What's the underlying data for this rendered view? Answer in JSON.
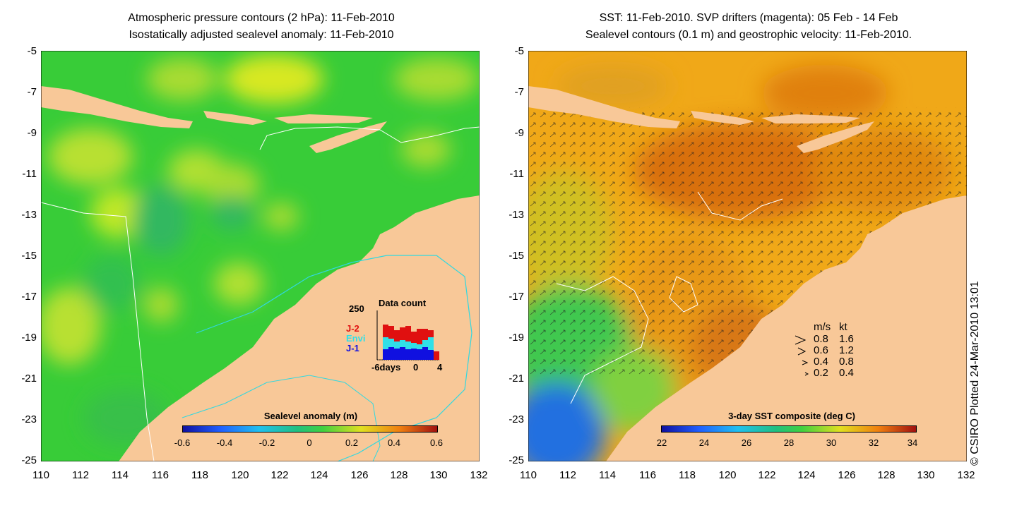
{
  "left_panel": {
    "title_line1": "Atmospheric pressure contours (2 hPa): 11-Feb-2010",
    "title_line2": "Isostatically adjusted sealevel anomaly: 11-Feb-2010",
    "y_ticks": [
      "-5",
      "-7",
      "-9",
      "-11",
      "-13",
      "-15",
      "-17",
      "-19",
      "-21",
      "-23",
      "-25"
    ],
    "x_ticks": [
      "110",
      "112",
      "114",
      "116",
      "118",
      "120",
      "122",
      "124",
      "126",
      "128",
      "130",
      "132"
    ],
    "colorbar": {
      "label": "Sealevel anomaly (m)",
      "ticks": [
        "-0.6",
        "-0.4",
        "-0.2",
        "0",
        "0.2",
        "0.4",
        "0.6"
      ]
    },
    "data_count": {
      "title": "Data count",
      "max_label": "250",
      "x_ticks": [
        "-6days",
        "0",
        "4"
      ],
      "legend": [
        {
          "label": "J-2",
          "color": "#e01010"
        },
        {
          "label": "Envi",
          "color": "#30e0e8"
        },
        {
          "label": "J-1",
          "color": "#1010e0"
        }
      ]
    }
  },
  "right_panel": {
    "title_line1": "SST: 11-Feb-2010. SVP drifters (magenta): 05 Feb - 14 Feb",
    "title_line2": "Sealevel contours (0.1 m) and geostrophic velocity: 11-Feb-2010.",
    "y_ticks": [
      "-5",
      "-7",
      "-9",
      "-11",
      "-13",
      "-15",
      "-17",
      "-19",
      "-21",
      "-23",
      "-25"
    ],
    "x_ticks": [
      "110",
      "112",
      "114",
      "116",
      "118",
      "120",
      "122",
      "124",
      "126",
      "128",
      "130",
      "132"
    ],
    "colorbar": {
      "label": "3-day SST composite (deg C)",
      "ticks": [
        "22",
        "24",
        "26",
        "28",
        "30",
        "32",
        "34"
      ]
    },
    "velocity_key": {
      "header_ms": "m/s",
      "header_kt": "kt",
      "rows": [
        {
          "ms": "0.8",
          "kt": "1.6"
        },
        {
          "ms": "0.6",
          "kt": "1.2"
        },
        {
          "ms": "0.4",
          "kt": "0.8"
        },
        {
          "ms": "0.2",
          "kt": "0.4"
        }
      ]
    }
  },
  "credit": "© CSIRO Plotted 24-Mar-2010 13:01",
  "colors": {
    "land": "#f8c898",
    "sla_background": "#40d040",
    "sst_background": "#f0a020"
  }
}
